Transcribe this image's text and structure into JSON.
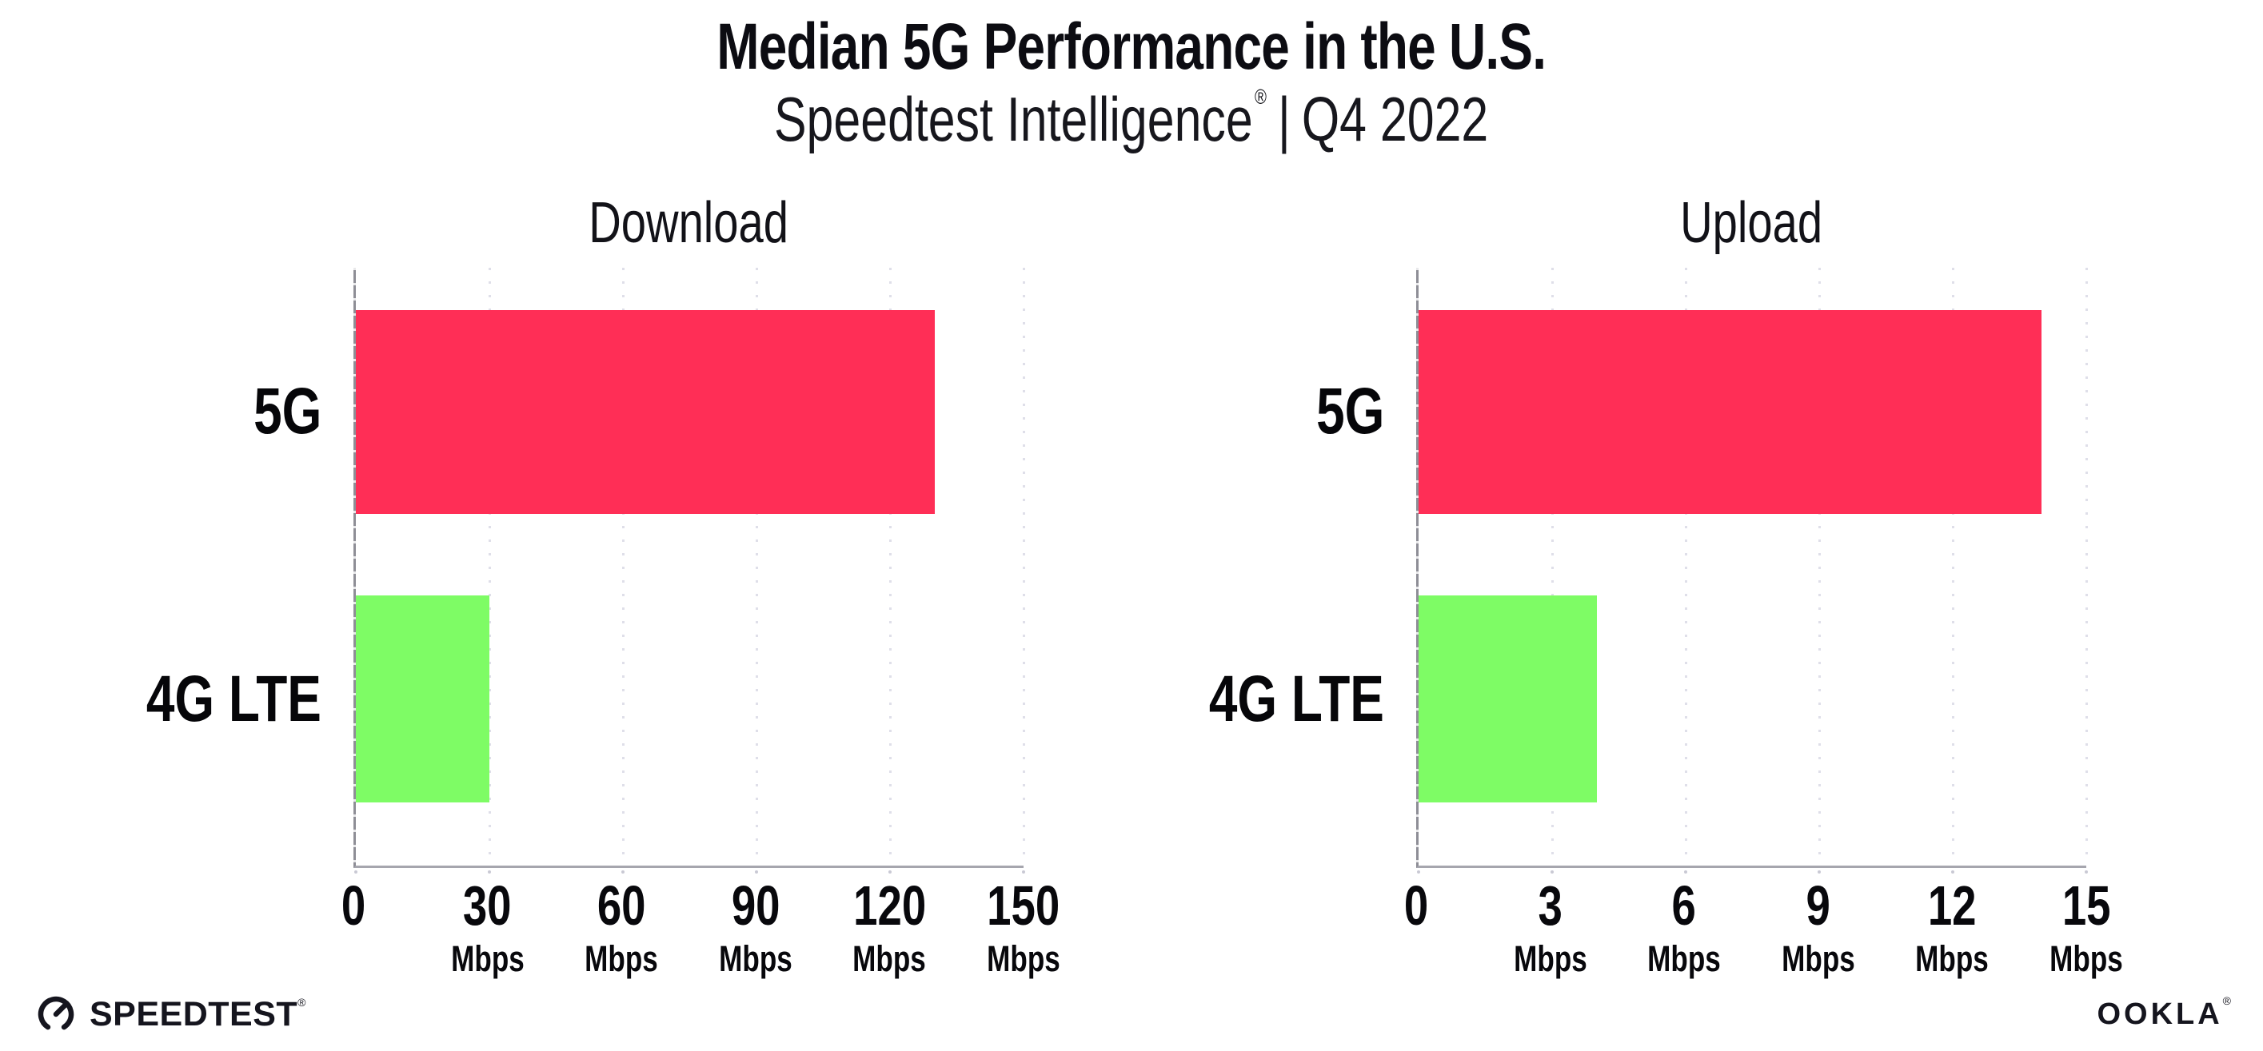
{
  "page": {
    "title": "Median 5G Performance in the U.S.",
    "subtitle": {
      "brand": "Speedtest Intelligence",
      "reg_mark": "®",
      "separator": "|",
      "period": "Q4 2022"
    },
    "footer": {
      "speedtest_text": "SPEEDTEST",
      "speedtest_mark": "®",
      "ookla_text": "OOKLA",
      "ookla_mark": "®"
    }
  },
  "colors": {
    "bar_5g": "#ff2e56",
    "bar_4g_lte": "#7efc65",
    "y_axis": "#8e8e96",
    "x_axis": "#a6a6ae",
    "gridline": "#dfdfe9",
    "text": "#0c0c12"
  },
  "chart_data": [
    {
      "type": "bar",
      "orientation": "horizontal",
      "title": "Download",
      "categories": [
        "5G",
        "4G LTE"
      ],
      "values": [
        130,
        30
      ],
      "unit": "Mbps",
      "xlim": [
        0,
        150
      ],
      "xticks": [
        0,
        30,
        60,
        90,
        120,
        150
      ],
      "tick_unit": "Mbps",
      "bar_colors": [
        "#ff2e56",
        "#7efc65"
      ],
      "grid": "vertical-dotted",
      "legend": "none"
    },
    {
      "type": "bar",
      "orientation": "horizontal",
      "title": "Upload",
      "categories": [
        "5G",
        "4G LTE"
      ],
      "values": [
        14,
        4
      ],
      "unit": "Mbps",
      "xlim": [
        0,
        15
      ],
      "xticks": [
        0,
        3,
        6,
        9,
        12,
        15
      ],
      "tick_unit": "Mbps",
      "bar_colors": [
        "#ff2e56",
        "#7efc65"
      ],
      "grid": "vertical-dotted",
      "legend": "none"
    }
  ]
}
